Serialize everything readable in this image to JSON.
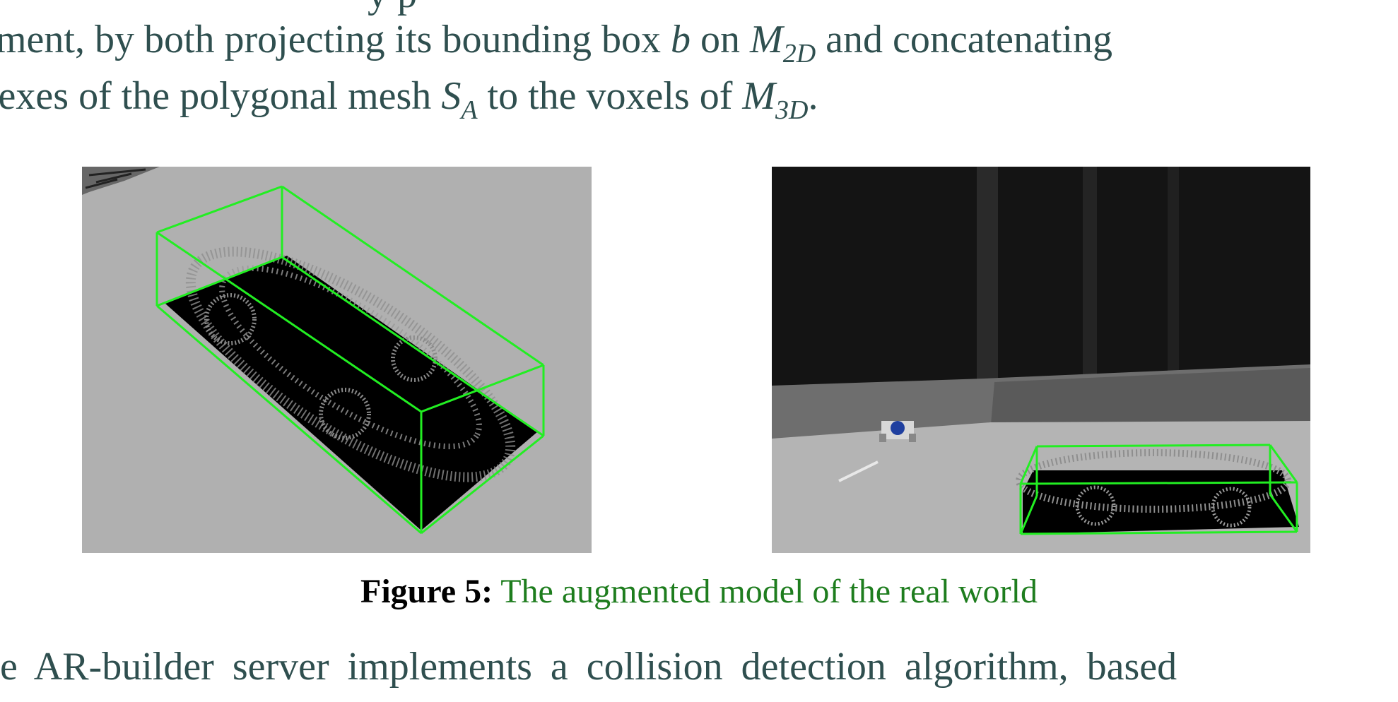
{
  "paragraph": {
    "top_cut": "y p",
    "line1_a": "ment, by both projecting its bounding box ",
    "line1_b": "b",
    "line1_c": " on ",
    "line1_m": "M",
    "line1_sub": "2D",
    "line1_d": " and concatenating",
    "line2_a": "texes of the polygonal mesh ",
    "line2_s": "S",
    "line2_sub": "A",
    "line2_b": " to the voxels of ",
    "line2_m": "M",
    "line2_sub2": "3D",
    "line2_end": "."
  },
  "figure": {
    "label": "Figure 5:",
    "caption": "The augmented model of the real world"
  },
  "next_paragraph": {
    "text": "e AR-builder server implements a collision detection algorithm, based"
  },
  "colors": {
    "body_text": "#2f4f4f",
    "caption_text": "#1e7d1e",
    "bounding_box": "#22ee22"
  }
}
